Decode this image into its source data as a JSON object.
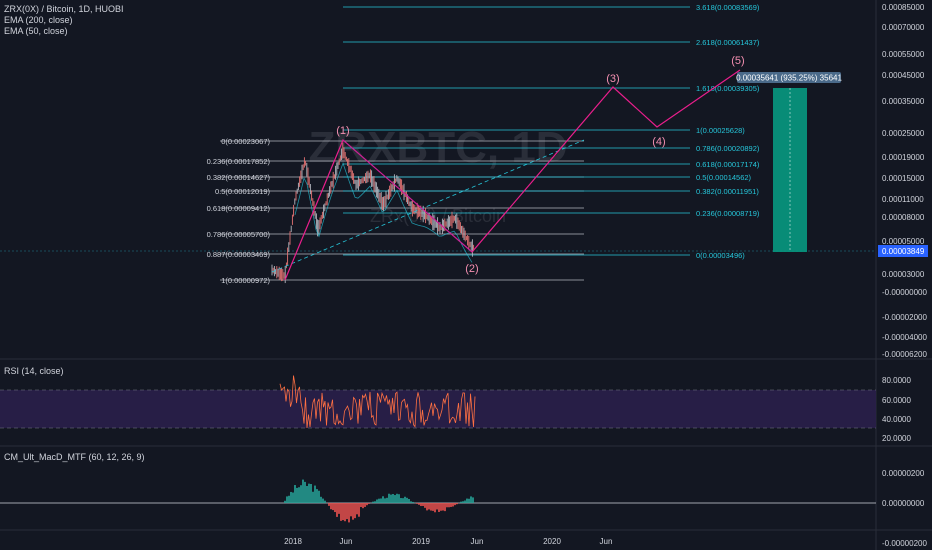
{
  "header": {
    "symbol_line": "ZRX(0X) / Bitcoin, 1D, HUOBI",
    "indicator_1": "EMA (200, close)",
    "indicator_2": "EMA (50, close)"
  },
  "watermark": {
    "large": "ZRXBTC, 1D",
    "small": "ZRx(0X) / Bitcoin"
  },
  "rsi_pane": {
    "label": "RSI (14, close)",
    "ticks": [
      "80.0000",
      "60.0000",
      "40.0000",
      "20.0000"
    ]
  },
  "macd_pane": {
    "label": "CM_Ult_MacD_MTF (60, 12, 26, 9)",
    "ticks": [
      "0.00000200",
      "0.00000000",
      "-0.00000200"
    ]
  },
  "price_axis": {
    "ticks": [
      "0.00085000",
      "0.00070000",
      "0.00055000",
      "0.00045000",
      "0.00035000",
      "0.00025000",
      "0.00019000",
      "0.00015000",
      "0.00011000",
      "0.00008000",
      "0.00005000",
      "0.00003000",
      "-0.00000000",
      "-0.00002000",
      "-0.00004000",
      "-0.00006200"
    ],
    "current_price": "0.00003849"
  },
  "time_axis": {
    "labels": [
      "2018",
      "Jun",
      "2019",
      "Jun",
      "2020",
      "Jun"
    ]
  },
  "fib_retracement": {
    "levels": [
      "0(0.00023067)",
      "0.236(0.00017852)",
      "0.382(0.00014627)",
      "0.5(0.00012019)",
      "0.618(0.00009412)",
      "0.786(0.00005700)",
      "0.887(0.00003469)",
      "1(0.00000972)"
    ]
  },
  "fib_extension": {
    "levels": [
      "3.618(0.00083569)",
      "2.618(0.00061437)",
      "1.618(0.00039305)",
      "1(0.00025628)",
      "0.786(0.00020892)",
      "0.618(0.00017174)",
      "0.5(0.00014562)",
      "0.382(0.00011951)",
      "0.236(0.00008719)",
      "0(0.00003496)"
    ]
  },
  "waves": {
    "labels": [
      "(1)",
      "(2)",
      "(3)",
      "(4)",
      "(5)"
    ]
  },
  "measure_label": "0.00035641 (935.25%) 35641",
  "colors": {
    "background": "#131722",
    "fib_teal": "#26c6da",
    "fib_grey": "#b2b5be",
    "wave_pink": "#e91e8c",
    "target_green": "#089981",
    "rsi_band": "#2a1f4a",
    "macd_green": "#26a69a",
    "macd_red": "#ef5350",
    "current_price_bg": "#2962ff"
  }
}
